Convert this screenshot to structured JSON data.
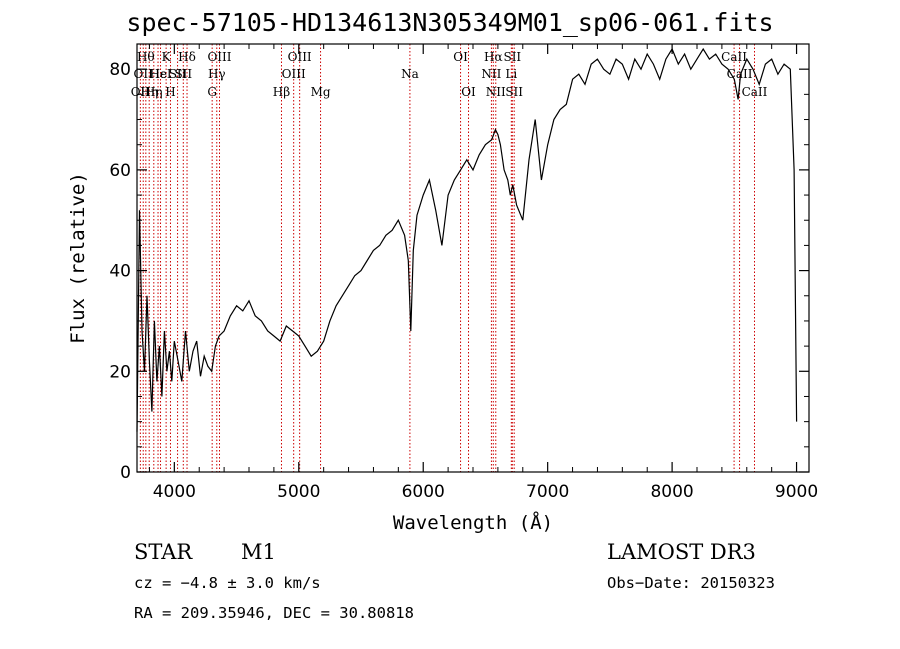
{
  "chart_data": {
    "type": "line",
    "title": "spec-57105-HD134613N305349M01_sp06-061.fits",
    "xlabel": "Wavelength (Å)",
    "ylabel": "Flux (relative)",
    "xlim": [
      3700,
      9100
    ],
    "ylim": [
      0,
      85
    ],
    "xticks": [
      4000,
      5000,
      6000,
      7000,
      8000,
      9000
    ],
    "yticks": [
      0,
      20,
      40,
      60,
      80
    ],
    "series": [
      {
        "name": "flux",
        "x": [
          3700,
          3720,
          3740,
          3760,
          3780,
          3800,
          3820,
          3840,
          3860,
          3880,
          3900,
          3920,
          3940,
          3960,
          3980,
          4000,
          4030,
          4060,
          4090,
          4120,
          4150,
          4180,
          4210,
          4240,
          4270,
          4300,
          4330,
          4360,
          4400,
          4450,
          4500,
          4550,
          4600,
          4650,
          4700,
          4750,
          4800,
          4850,
          4900,
          4950,
          5000,
          5050,
          5100,
          5150,
          5200,
          5250,
          5300,
          5350,
          5400,
          5450,
          5500,
          5550,
          5600,
          5650,
          5700,
          5750,
          5800,
          5850,
          5880,
          5900,
          5920,
          5950,
          6000,
          6050,
          6100,
          6150,
          6200,
          6250,
          6300,
          6350,
          6400,
          6450,
          6500,
          6550,
          6580,
          6600,
          6620,
          6650,
          6680,
          6700,
          6720,
          6750,
          6800,
          6850,
          6900,
          6950,
          7000,
          7050,
          7100,
          7150,
          7200,
          7250,
          7300,
          7350,
          7400,
          7450,
          7500,
          7550,
          7600,
          7650,
          7700,
          7750,
          7800,
          7850,
          7900,
          7950,
          8000,
          8050,
          8100,
          8150,
          8200,
          8250,
          8300,
          8350,
          8400,
          8450,
          8500,
          8530,
          8550,
          8600,
          8650,
          8700,
          8750,
          8800,
          8850,
          8900,
          8950,
          8980,
          9000
        ],
        "y": [
          8,
          52,
          28,
          20,
          35,
          22,
          12,
          30,
          18,
          25,
          15,
          28,
          20,
          24,
          18,
          26,
          22,
          18,
          28,
          20,
          24,
          26,
          19,
          23,
          21,
          20,
          25,
          27,
          28,
          31,
          33,
          32,
          34,
          31,
          30,
          28,
          27,
          26,
          29,
          28,
          27,
          25,
          23,
          24,
          26,
          30,
          33,
          35,
          37,
          39,
          40,
          42,
          44,
          45,
          47,
          48,
          50,
          47,
          42,
          28,
          44,
          51,
          55,
          58,
          52,
          45,
          55,
          58,
          60,
          62,
          60,
          63,
          65,
          66,
          68,
          67,
          65,
          60,
          58,
          55,
          57,
          53,
          50,
          62,
          70,
          58,
          65,
          70,
          72,
          73,
          78,
          79,
          77,
          81,
          82,
          80,
          79,
          82,
          81,
          78,
          82,
          80,
          83,
          81,
          78,
          82,
          84,
          81,
          83,
          80,
          82,
          84,
          82,
          83,
          81,
          80,
          78,
          74,
          79,
          82,
          80,
          77,
          81,
          82,
          79,
          81,
          80,
          60,
          10
        ]
      }
    ],
    "lines": [
      {
        "x": 3727,
        "label": "OII",
        "row": 3
      },
      {
        "x": 3750,
        "label": "OII",
        "row": 2
      },
      {
        "x": 3771,
        "label": "Hθ",
        "row": 1
      },
      {
        "x": 3798,
        "label": "Hη",
        "row": 3
      },
      {
        "x": 3835,
        "label": "Hη",
        "row": 3
      },
      {
        "x": 3869,
        "label": "Hε",
        "row": 2
      },
      {
        "x": 3889,
        "label": "HeI",
        "row": 2
      },
      {
        "x": 3934,
        "label": "K",
        "row": 1
      },
      {
        "x": 3969,
        "label": "H",
        "row": 3
      },
      {
        "x": 4026,
        "label": "SII",
        "row": 2
      },
      {
        "x": 4072,
        "label": "SII",
        "row": 2
      },
      {
        "x": 4102,
        "label": "Hδ",
        "row": 1
      },
      {
        "x": 4304,
        "label": "G",
        "row": 3
      },
      {
        "x": 4341,
        "label": "Hγ",
        "row": 2
      },
      {
        "x": 4363,
        "label": "OIII",
        "row": 1
      },
      {
        "x": 4861,
        "label": "Hβ",
        "row": 3
      },
      {
        "x": 4959,
        "label": "OIII",
        "row": 2
      },
      {
        "x": 5007,
        "label": "OIII",
        "row": 1
      },
      {
        "x": 5175,
        "label": "Mg",
        "row": 3
      },
      {
        "x": 5893,
        "label": "Na",
        "row": 2
      },
      {
        "x": 6300,
        "label": "OI",
        "row": 1
      },
      {
        "x": 6364,
        "label": "OI",
        "row": 3
      },
      {
        "x": 6548,
        "label": "NII",
        "row": 2
      },
      {
        "x": 6563,
        "label": "Hα",
        "row": 1
      },
      {
        "x": 6583,
        "label": "NII",
        "row": 3
      },
      {
        "x": 6708,
        "label": "Li",
        "row": 2
      },
      {
        "x": 6716,
        "label": "SII",
        "row": 1
      },
      {
        "x": 6731,
        "label": "SII",
        "row": 3
      },
      {
        "x": 8498,
        "label": "CaII",
        "row": 1
      },
      {
        "x": 8542,
        "label": "CaII",
        "row": 2
      },
      {
        "x": 8662,
        "label": "CaII",
        "row": 3
      }
    ]
  },
  "info": {
    "object_class": "STAR",
    "subclass": "M1",
    "survey": "LAMOST DR3",
    "cz": "cz = −4.8 ± 3.0 km/s",
    "obs_date": "Obs−Date: 20150323",
    "radec": "RA = 209.35946, DEC =  30.80818"
  },
  "colors": {
    "line_marker": "#cc0000",
    "spectrum": "#000000"
  }
}
